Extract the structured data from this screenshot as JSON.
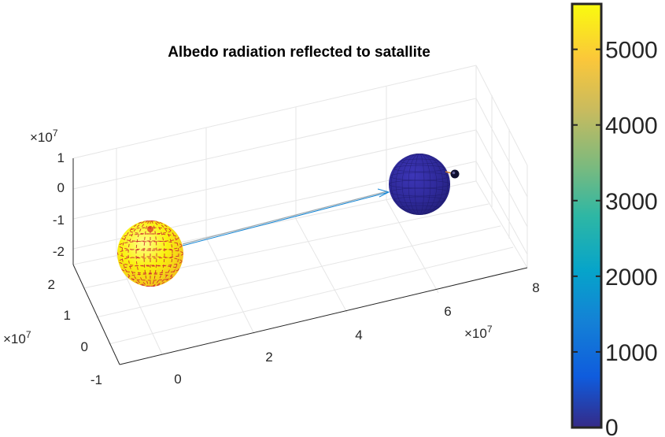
{
  "figure": {
    "title": "Albedo radiation reflected to satallite",
    "x_exponent": "×10",
    "x_exponent_power": "7",
    "y_exponent": "×10",
    "y_exponent_power": "7",
    "z_exponent": "×10",
    "z_exponent_power": "7"
  },
  "chart_data": {
    "type": "scatter",
    "title": "Albedo radiation reflected to satallite",
    "xlabel": "",
    "ylabel": "",
    "zlabel": "",
    "x_ticks": [
      "0",
      "2",
      "4",
      "6",
      "8"
    ],
    "y_ticks": [
      "-1",
      "0",
      "1",
      "2"
    ],
    "z_ticks": [
      "-2",
      "-1",
      "0",
      "1"
    ],
    "xlim": [
      -1,
      8
    ],
    "ylim": [
      -1,
      2
    ],
    "zlim": [
      -2.5,
      1
    ],
    "axis_scale": "x10^7",
    "grid": true,
    "colorbar": {
      "ticks": [
        "0",
        "1000",
        "2000",
        "3000",
        "4000",
        "5000"
      ],
      "range": [
        0,
        5600
      ],
      "colormap": "parula",
      "colors": [
        "#352a87",
        "#0363e1",
        "#1485d4",
        "#06a7c6",
        "#38b99e",
        "#92bf73",
        "#d9ba56",
        "#fcce2e",
        "#f9fb0e"
      ]
    },
    "objects": [
      {
        "name": "Sun",
        "x": 0,
        "y": 0,
        "z": -2,
        "color": "#f9fb0e",
        "mesh_color": "#d62728"
      },
      {
        "name": "Earth",
        "x": 6,
        "y": 0,
        "z": 0,
        "color": "#352a87"
      },
      {
        "name": "Satellite",
        "x": 6.6,
        "y": 0,
        "z": 0,
        "color": "#101030"
      }
    ],
    "arrows": [
      {
        "from": "Sun",
        "to": "Earth",
        "color": "#1485d4"
      }
    ]
  }
}
